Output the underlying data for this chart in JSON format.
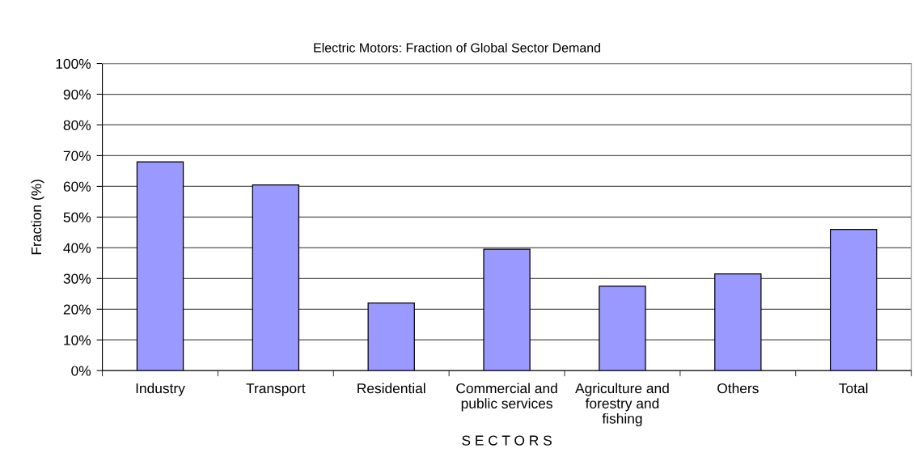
{
  "chart_data": {
    "type": "bar",
    "title": "Electric Motors: Fraction of Global Sector Demand",
    "xlabel": "S E C T O R S",
    "ylabel": "Fraction (%)",
    "categories": [
      "Industry",
      "Transport",
      "Residential",
      "Commercial and\npublic services",
      "Agriculture and\nforestry and\nfishing",
      "Others",
      "Total"
    ],
    "values": [
      68,
      60.5,
      22,
      39.5,
      27.5,
      31.5,
      46
    ],
    "color": "#9999ff",
    "ylim": [
      0,
      100
    ],
    "yticks": [
      {
        "value": 0,
        "label": "0%"
      },
      {
        "value": 10,
        "label": "10%"
      },
      {
        "value": 20,
        "label": "20%"
      },
      {
        "value": 30,
        "label": "30%"
      },
      {
        "value": 40,
        "label": "40%"
      },
      {
        "value": 50,
        "label": "50%"
      },
      {
        "value": 60,
        "label": "60%"
      },
      {
        "value": 70,
        "label": "70%"
      },
      {
        "value": 80,
        "label": "80%"
      },
      {
        "value": 90,
        "label": "90%"
      },
      {
        "value": 100,
        "label": "100%"
      }
    ],
    "grid": "y"
  }
}
